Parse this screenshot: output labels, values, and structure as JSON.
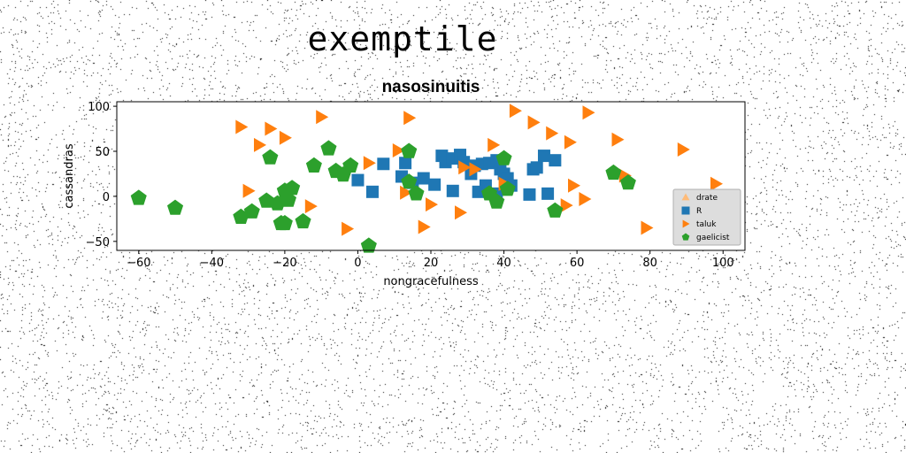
{
  "figure_title": "exemptile",
  "chart_data": {
    "type": "scatter",
    "title": "nasosinuitis",
    "xlabel": "nongracefulness",
    "ylabel": "cassandras",
    "xlim": [
      -66,
      106
    ],
    "ylim": [
      -60,
      105
    ],
    "xticks": [
      -60,
      -40,
      -20,
      0,
      20,
      40,
      60,
      80,
      100
    ],
    "yticks": [
      -50,
      0,
      50,
      100
    ],
    "xtick_labels": [
      "−60",
      "−40",
      "−20",
      "0",
      "20",
      "40",
      "60",
      "80",
      "100"
    ],
    "ytick_labels": [
      "−50",
      "0",
      "50",
      "100"
    ],
    "grid": false,
    "legend_position": "lower-right",
    "series": [
      {
        "name": "drate",
        "marker": "triangle-up",
        "color": "#ffbb78",
        "points": []
      },
      {
        "name": "R",
        "marker": "square",
        "color": "#1f77b4",
        "points": [
          [
            7,
            36
          ],
          [
            12,
            22
          ],
          [
            13,
            37
          ],
          [
            15,
            15
          ],
          [
            18,
            20
          ],
          [
            21,
            13
          ],
          [
            23,
            45
          ],
          [
            24,
            38
          ],
          [
            26,
            6
          ],
          [
            26,
            42
          ],
          [
            28,
            46
          ],
          [
            29,
            38
          ],
          [
            31,
            25
          ],
          [
            32,
            34
          ],
          [
            33,
            5
          ],
          [
            34,
            36
          ],
          [
            35,
            12
          ],
          [
            36,
            37
          ],
          [
            38,
            40
          ],
          [
            38,
            3
          ],
          [
            39,
            30
          ],
          [
            40,
            25
          ],
          [
            41,
            20
          ],
          [
            42,
            12
          ],
          [
            47,
            2
          ],
          [
            48,
            30
          ],
          [
            49,
            32
          ],
          [
            51,
            45
          ],
          [
            52,
            3
          ],
          [
            54,
            40
          ],
          [
            0,
            18
          ],
          [
            4,
            5
          ]
        ]
      },
      {
        "name": "taluk",
        "marker": "triangle-right",
        "color": "#ff7f0e",
        "points": [
          [
            -32,
            77
          ],
          [
            -30,
            6
          ],
          [
            -27,
            57
          ],
          [
            -24,
            75
          ],
          [
            -20,
            65
          ],
          [
            -13,
            -11
          ],
          [
            -10,
            88
          ],
          [
            -3,
            -36
          ],
          [
            3,
            37
          ],
          [
            11,
            51
          ],
          [
            14,
            87
          ],
          [
            13,
            4
          ],
          [
            18,
            -34
          ],
          [
            20,
            -9
          ],
          [
            28,
            -18
          ],
          [
            29,
            32
          ],
          [
            32,
            30
          ],
          [
            37,
            57
          ],
          [
            40,
            14
          ],
          [
            43,
            95
          ],
          [
            48,
            82
          ],
          [
            53,
            70
          ],
          [
            58,
            60
          ],
          [
            59,
            12
          ],
          [
            62,
            -3
          ],
          [
            57,
            -10
          ],
          [
            63,
            93
          ],
          [
            71,
            63
          ],
          [
            73,
            23
          ],
          [
            79,
            -35
          ],
          [
            89,
            52
          ],
          [
            98,
            14
          ]
        ]
      },
      {
        "name": "gaelicist",
        "marker": "pentagon",
        "color": "#2ca02c",
        "points": [
          [
            -60,
            -2
          ],
          [
            -50,
            -13
          ],
          [
            -32,
            -23
          ],
          [
            -29,
            -17
          ],
          [
            -25,
            -5
          ],
          [
            -24,
            43
          ],
          [
            -22,
            -8
          ],
          [
            -21,
            -30
          ],
          [
            -20,
            6
          ],
          [
            -19,
            -4
          ],
          [
            -18,
            9
          ],
          [
            -15,
            -28
          ],
          [
            -12,
            34
          ],
          [
            -8,
            53
          ],
          [
            -6,
            28
          ],
          [
            -4,
            24
          ],
          [
            -2,
            34
          ],
          [
            3,
            -55
          ],
          [
            14,
            50
          ],
          [
            14,
            16
          ],
          [
            16,
            3
          ],
          [
            36,
            3
          ],
          [
            38,
            -6
          ],
          [
            40,
            42
          ],
          [
            41,
            8
          ],
          [
            54,
            -16
          ],
          [
            70,
            26
          ],
          [
            74,
            15
          ],
          [
            -20,
            -30
          ]
        ]
      }
    ]
  }
}
